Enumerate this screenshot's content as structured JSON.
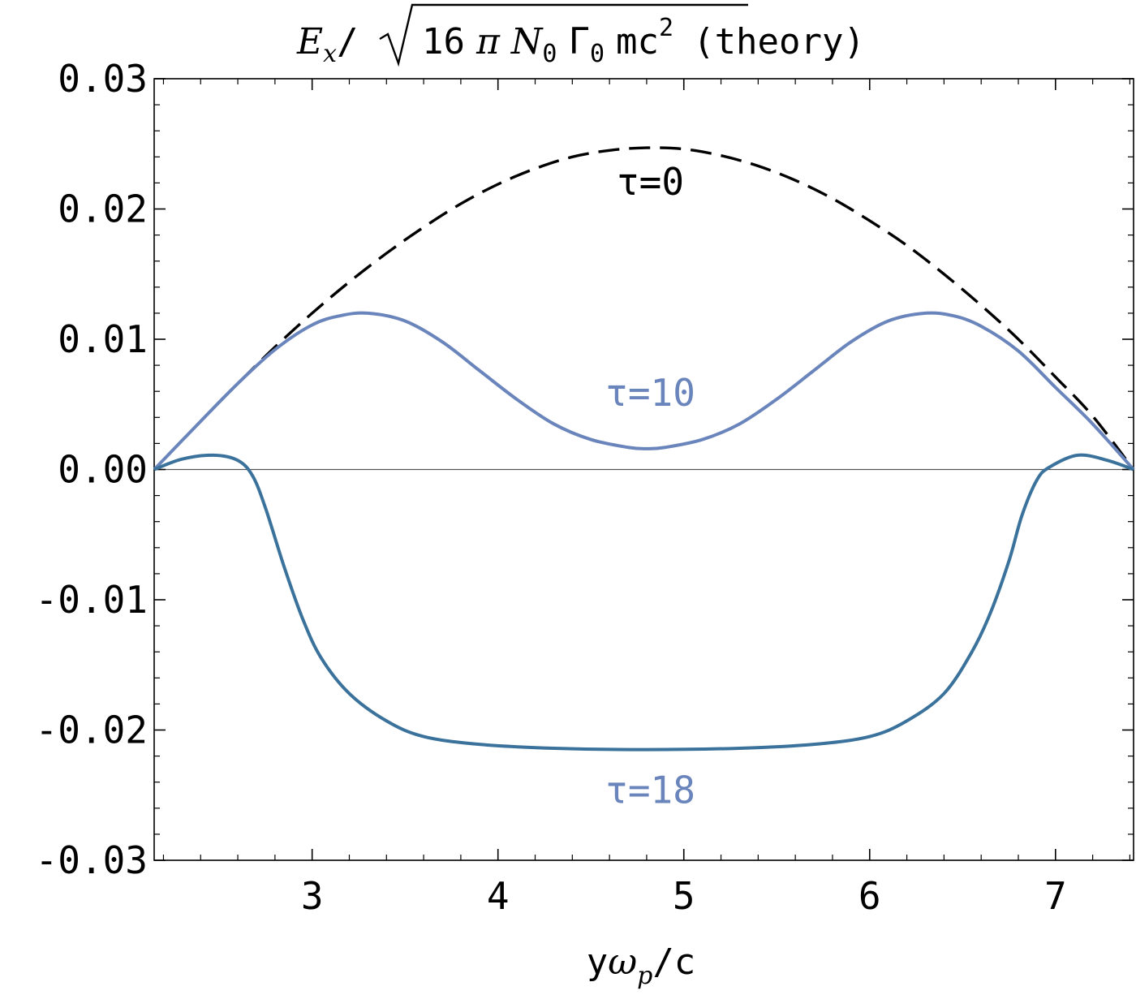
{
  "chart_data": {
    "type": "line",
    "title": {
      "prefix": "E",
      "prefix_sub": "x",
      "slash": "/",
      "radicand_num": "16",
      "radicand_pi": "π",
      "radicand_n": "N",
      "radicand_n_sub": "0",
      "radicand_gamma": "Γ",
      "radicand_gamma_sub": "0",
      "radicand_mc": "mc",
      "radicand_exp": "2",
      "suffix": "(theory)"
    },
    "xlabel": {
      "y": "y",
      "omega": "ω",
      "omega_sub": "p",
      "rest": "/c"
    },
    "ylabel": "",
    "xlim": [
      2.15,
      7.42
    ],
    "ylim": [
      -0.03,
      0.03
    ],
    "x_ticks": [
      "3",
      "4",
      "5",
      "6",
      "7"
    ],
    "y_ticks": [
      "0.03",
      "0.02",
      "0.01",
      "0.00",
      "-0.01",
      "-0.02",
      "-0.03"
    ],
    "zero_line": true,
    "grid": false,
    "colors": {
      "tau0": "#000000",
      "tau10": "#6a85bb",
      "tau18": "#3a729c",
      "label_tau10": "#6a85bb",
      "label_tau18": "#6a85bb"
    },
    "series": [
      {
        "name": "τ=0",
        "style": "dashed",
        "x": [
          2.15,
          2.4,
          2.6,
          2.8,
          3.0,
          3.2,
          3.4,
          3.6,
          3.8,
          4.0,
          4.2,
          4.4,
          4.6,
          4.8,
          5.0,
          5.2,
          5.4,
          5.6,
          5.8,
          6.0,
          6.2,
          6.4,
          6.6,
          6.8,
          7.0,
          7.2,
          7.42
        ],
        "y": [
          0.0,
          0.0037,
          0.0066,
          0.0094,
          0.012,
          0.0144,
          0.0166,
          0.0186,
          0.0204,
          0.0219,
          0.0231,
          0.024,
          0.0245,
          0.0247,
          0.0246,
          0.0241,
          0.0233,
          0.0222,
          0.0208,
          0.0191,
          0.0172,
          0.015,
          0.0126,
          0.01,
          0.0071,
          0.0041,
          0.0
        ]
      },
      {
        "name": "τ=10",
        "style": "solid",
        "x": [
          2.15,
          2.4,
          2.6,
          2.8,
          3.0,
          3.15,
          3.3,
          3.5,
          3.7,
          3.9,
          4.1,
          4.3,
          4.5,
          4.7,
          4.8,
          4.9,
          5.1,
          5.3,
          5.5,
          5.7,
          5.9,
          6.1,
          6.3,
          6.45,
          6.6,
          6.8,
          7.0,
          7.2,
          7.42
        ],
        "y": [
          0.0,
          0.0037,
          0.0066,
          0.0092,
          0.0111,
          0.0118,
          0.012,
          0.0114,
          0.0098,
          0.0076,
          0.0054,
          0.0035,
          0.0023,
          0.0017,
          0.0016,
          0.0017,
          0.0023,
          0.0035,
          0.0054,
          0.0076,
          0.0098,
          0.0114,
          0.012,
          0.0118,
          0.011,
          0.0091,
          0.0063,
          0.0035,
          0.0
        ]
      },
      {
        "name": "τ=18",
        "style": "solid",
        "x": [
          2.15,
          2.3,
          2.47,
          2.6,
          2.68,
          2.75,
          2.85,
          2.95,
          3.05,
          3.2,
          3.4,
          3.6,
          3.9,
          4.3,
          4.8,
          5.3,
          5.7,
          6.0,
          6.2,
          6.4,
          6.55,
          6.65,
          6.75,
          6.82,
          6.9,
          6.97,
          7.12,
          7.28,
          7.42
        ],
        "y": [
          0.0,
          0.0008,
          0.0011,
          0.0007,
          -0.0005,
          -0.003,
          -0.0075,
          -0.0115,
          -0.0145,
          -0.0172,
          -0.0193,
          -0.0205,
          -0.0211,
          -0.0214,
          -0.0215,
          -0.0214,
          -0.0211,
          -0.0205,
          -0.0193,
          -0.0172,
          -0.014,
          -0.011,
          -0.007,
          -0.0035,
          -0.0008,
          0.0002,
          0.0011,
          0.0007,
          0.0
        ]
      }
    ],
    "annotations": [
      {
        "text": "τ=0",
        "x": 4.82,
        "y": 0.0221,
        "color": "#000000"
      },
      {
        "text": "τ=10",
        "x": 4.82,
        "y": 0.0059,
        "color": "#6a85bb"
      },
      {
        "text": "τ=18",
        "x": 4.82,
        "y": -0.0246,
        "color": "#6a85bb"
      }
    ]
  }
}
